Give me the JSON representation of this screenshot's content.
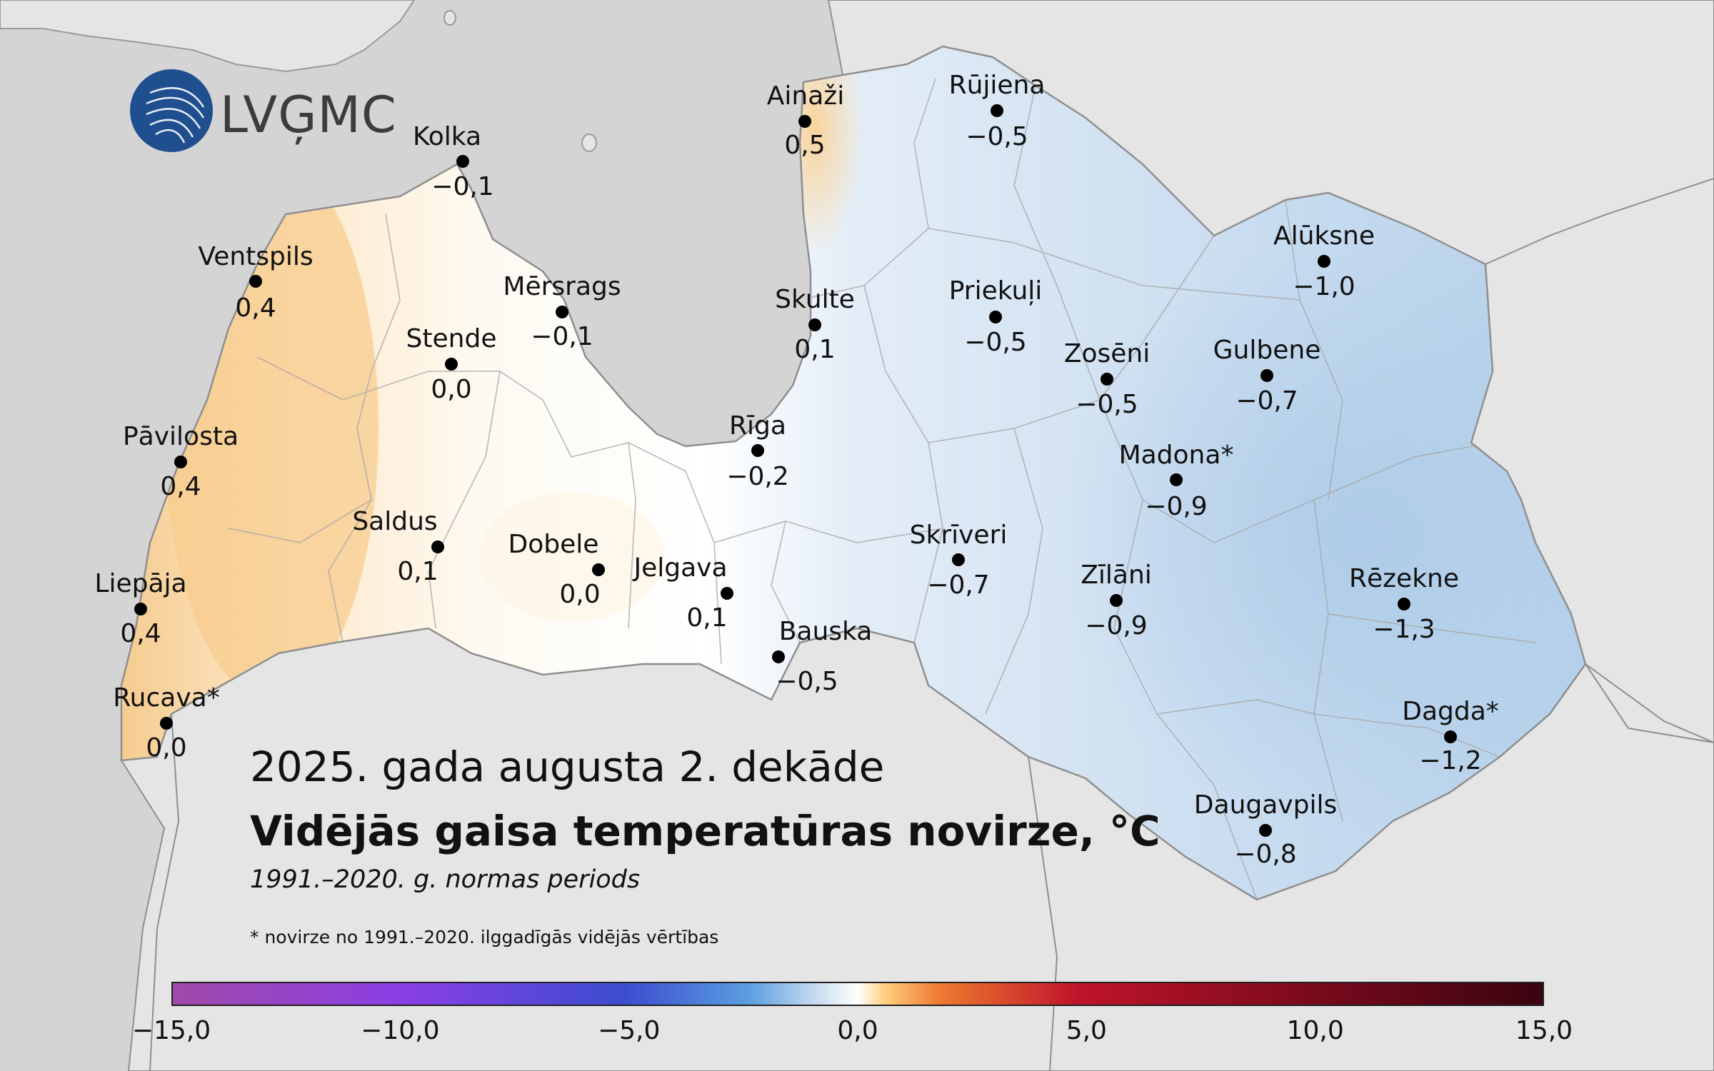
{
  "logo": {
    "text": "LVĢMC"
  },
  "title": {
    "line1": "2025. gada augusta 2. dekāde",
    "line2": "Vidējās gaisa temperatūras novirze, °C",
    "line3": "1991.–2020. g. normas periods",
    "footnote": "* novirze no 1991.–2020. ilggadīgās vidējās vērtības"
  },
  "colors": {
    "sea": "#d4d4d4",
    "land_outside": "#e5e5e5",
    "warm": "#f5c98a",
    "neutral": "#fefcf7",
    "cool": "#b6d2ec",
    "border": "#999999"
  },
  "scale": {
    "range": [
      -15,
      15
    ],
    "ticks": [
      "−15,0",
      "−10,0",
      "−5,0",
      "0,0",
      "5,0",
      "10,0",
      "15,0"
    ]
  },
  "stations": [
    {
      "name": "Kolka",
      "value": "−0,1"
    },
    {
      "name": "Ainaži",
      "value": "0,5"
    },
    {
      "name": "Rūjiena",
      "value": "−0,5"
    },
    {
      "name": "Ventspils",
      "value": "0,4"
    },
    {
      "name": "Mērsrags",
      "value": "−0,1"
    },
    {
      "name": "Skulte",
      "value": "0,1"
    },
    {
      "name": "Priekuļi",
      "value": "−0,5"
    },
    {
      "name": "Alūksne",
      "value": "−1,0"
    },
    {
      "name": "Stende",
      "value": "0,0"
    },
    {
      "name": "Zosēni",
      "value": "−0,5"
    },
    {
      "name": "Gulbene",
      "value": "−0,7"
    },
    {
      "name": "Pāvilosta",
      "value": "0,4"
    },
    {
      "name": "Rīga",
      "value": "−0,2"
    },
    {
      "name": "Madona*",
      "value": "−0,9"
    },
    {
      "name": "Saldus",
      "value": "0,1"
    },
    {
      "name": "Dobele",
      "value": "0,0"
    },
    {
      "name": "Jelgava",
      "value": "0,1"
    },
    {
      "name": "Skrīveri",
      "value": "−0,7"
    },
    {
      "name": "Zīlāni",
      "value": "−0,9"
    },
    {
      "name": "Rēzekne",
      "value": "−1,3"
    },
    {
      "name": "Liepāja",
      "value": "0,4"
    },
    {
      "name": "Bauska",
      "value": "−0,5"
    },
    {
      "name": "Rucava*",
      "value": "0,0"
    },
    {
      "name": "Dagda*",
      "value": "−1,2"
    },
    {
      "name": "Daugavpils",
      "value": "−0,8"
    }
  ]
}
